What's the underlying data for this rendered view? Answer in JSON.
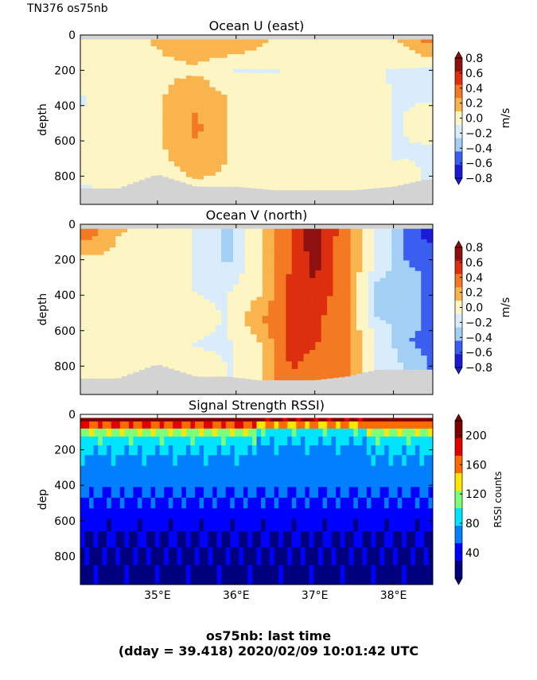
{
  "header": {
    "ship_label": "TN376 os75nb"
  },
  "footer": {
    "line1": "os75nb: last time",
    "line2": "(dday = 39.418) 2020/02/09 10:01:42 UTC"
  },
  "chart_data": [
    {
      "type": "heatmap",
      "title": "Ocean U (east)",
      "ylabel": "depth",
      "ylim": [
        960,
        0
      ],
      "yticks": [
        "0",
        "200",
        "400",
        "600",
        "800"
      ],
      "xlim": [
        34.02,
        38.5
      ],
      "xticks": [
        "35°E",
        "36°E",
        "37°E",
        "38°E"
      ],
      "xticks_visible": false,
      "colorbar": {
        "label": "m/s",
        "ticks": [
          "0.8",
          "0.6",
          "0.4",
          "0.2",
          "0.0",
          "−0.2",
          "−0.4",
          "−0.6",
          "−0.8"
        ],
        "range": [
          -0.8,
          0.8
        ]
      },
      "colors": [
        "#1a1ad8",
        "#3a5ff0",
        "#a3cff5",
        "#d8ecfb",
        "#fdf5c4",
        "#f9b44e",
        "#f37a22",
        "#dc2f0f",
        "#8e1010"
      ],
      "bottom_color": "#d3d3d3",
      "columns": [
        {
          "lon": 34.1,
          "values": [
            0.05,
            0.0,
            -0.1,
            -0.05,
            0.0,
            -0.1
          ]
        },
        {
          "lon": 34.5,
          "values": [
            0.05,
            0.05,
            0.05,
            0.0,
            0.05,
            0.0
          ]
        },
        {
          "lon": 35.0,
          "values": [
            0.1,
            0.05,
            0.05,
            0.05,
            0.05,
            0.05
          ]
        },
        {
          "lon": 35.5,
          "values": [
            0.25,
            0.05,
            0.25,
            0.3,
            0.25,
            0.05
          ]
        },
        {
          "lon": 36.0,
          "values": [
            0.25,
            -0.1,
            0.05,
            0.05,
            0.05,
            0.05
          ]
        },
        {
          "lon": 36.5,
          "values": [
            0.05,
            -0.1,
            0.05,
            0.05,
            0.05,
            0.05
          ]
        },
        {
          "lon": 37.0,
          "values": [
            0.05,
            0.05,
            0.0,
            0.05,
            0.05,
            0.05
          ]
        },
        {
          "lon": 37.5,
          "values": [
            0.05,
            -0.05,
            0.05,
            0.0,
            0.05,
            0.05
          ]
        },
        {
          "lon": 38.0,
          "values": [
            0.05,
            -0.1,
            -0.1,
            -0.1,
            -0.1,
            0.0
          ]
        },
        {
          "lon": 38.4,
          "values": [
            0.3,
            -0.1,
            -0.1,
            -0.05,
            -0.1,
            -0.1
          ]
        }
      ],
      "seafloor_depth": [
        870,
        870,
        790,
        860,
        860,
        880,
        880,
        880,
        860,
        820
      ]
    },
    {
      "type": "heatmap",
      "title": "Ocean V (north)",
      "ylabel": "depth",
      "ylim": [
        960,
        0
      ],
      "yticks": [
        "0",
        "200",
        "400",
        "600",
        "800"
      ],
      "xlim": [
        34.02,
        38.5
      ],
      "xticks": [
        "35°E",
        "36°E",
        "37°E",
        "38°E"
      ],
      "xticks_visible": false,
      "colorbar": {
        "label": "m/s",
        "ticks": [
          "0.8",
          "0.6",
          "0.4",
          "0.2",
          "0.0",
          "−0.2",
          "−0.4",
          "−0.6",
          "−0.8"
        ],
        "range": [
          -0.8,
          0.8
        ]
      },
      "colors": [
        "#1a1ad8",
        "#3a5ff0",
        "#a3cff5",
        "#d8ecfb",
        "#fdf5c4",
        "#f9b44e",
        "#f37a22",
        "#dc2f0f",
        "#8e1010"
      ],
      "bottom_color": "#d3d3d3",
      "columns": [
        {
          "lon": 34.1,
          "values": [
            0.4,
            0.05,
            0.05,
            0.05,
            0.05,
            0.05
          ]
        },
        {
          "lon": 34.5,
          "values": [
            0.1,
            0.05,
            0.05,
            0.05,
            0.05,
            0.05
          ]
        },
        {
          "lon": 35.0,
          "values": [
            0.05,
            0.05,
            -0.05,
            0.05,
            0.05,
            0.05
          ]
        },
        {
          "lon": 35.5,
          "values": [
            -0.1,
            -0.1,
            -0.1,
            -0.05,
            -0.1,
            0.05
          ]
        },
        {
          "lon": 35.9,
          "values": [
            -0.3,
            -0.3,
            -0.1,
            -0.1,
            -0.1,
            -0.1
          ]
        },
        {
          "lon": 36.3,
          "values": [
            0.05,
            0.05,
            0.05,
            0.25,
            0.05,
            0.05
          ]
        },
        {
          "lon": 36.7,
          "values": [
            0.45,
            0.45,
            0.5,
            0.5,
            0.5,
            0.45
          ]
        },
        {
          "lon": 37.0,
          "values": [
            0.75,
            0.7,
            0.6,
            0.5,
            0.45,
            0.3
          ]
        },
        {
          "lon": 37.4,
          "values": [
            0.3,
            0.3,
            0.3,
            0.3,
            0.3,
            0.3
          ]
        },
        {
          "lon": 37.8,
          "values": [
            -0.1,
            -0.1,
            -0.3,
            -0.3,
            -0.1,
            -0.1
          ]
        },
        {
          "lon": 38.2,
          "values": [
            -0.5,
            -0.5,
            -0.3,
            -0.3,
            -0.45,
            -0.3
          ]
        },
        {
          "lon": 38.45,
          "values": [
            -0.75,
            -0.5,
            -0.5,
            -0.5,
            -0.5,
            -0.45
          ]
        }
      ],
      "seafloor_depth": [
        870,
        870,
        790,
        860,
        860,
        880,
        880,
        880,
        860,
        820,
        820,
        820
      ]
    },
    {
      "type": "heatmap",
      "title": "Signal Strength RSSI)",
      "ylabel": "dep",
      "ylim": [
        960,
        0
      ],
      "yticks": [
        "0",
        "200",
        "400",
        "600",
        "800"
      ],
      "xlim": [
        34.02,
        38.5
      ],
      "xticks": [
        "35°E",
        "36°E",
        "37°E",
        "38°E"
      ],
      "colorbar": {
        "label": "RSSI counts",
        "ticks": [
          "200",
          "160",
          "120",
          "80",
          "40"
        ],
        "range": [
          5,
          220
        ]
      },
      "colors": [
        "#00007f",
        "#0000ff",
        "#0080ff",
        "#00e5ff",
        "#7dff7a",
        "#ffe600",
        "#ff6a00",
        "#e50000",
        "#7f0000"
      ],
      "depth_levels": [
        20,
        60,
        100,
        150,
        200,
        260,
        320,
        380,
        440,
        500,
        560,
        620,
        700,
        800,
        900
      ],
      "profile_left": [
        210,
        170,
        120,
        95,
        80,
        70,
        65,
        62,
        55,
        48,
        42,
        34,
        28,
        24,
        22
      ],
      "profile_mid": [
        200,
        150,
        95,
        80,
        70,
        68,
        66,
        62,
        55,
        48,
        42,
        34,
        28,
        24,
        22
      ],
      "profile_right": [
        205,
        160,
        120,
        95,
        80,
        72,
        66,
        62,
        55,
        48,
        42,
        34,
        28,
        24,
        22
      ]
    }
  ]
}
